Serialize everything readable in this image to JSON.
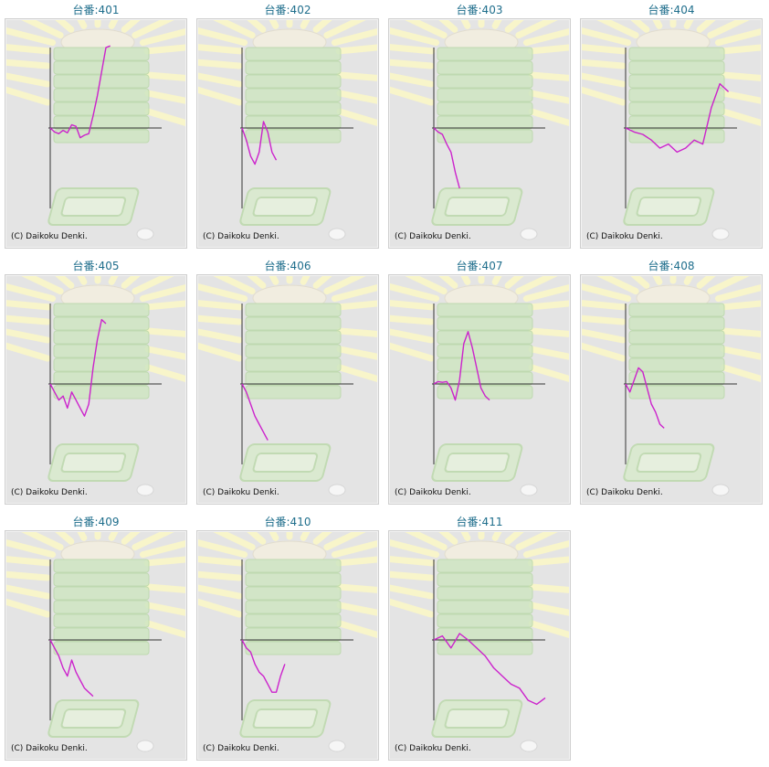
{
  "colors": {
    "title": "#1f6e8c",
    "line": "#cc22cc",
    "axis": "#333333",
    "panel": "#e4e4e4",
    "rays": "#fbf7c8",
    "tower": "#cfe6c2"
  },
  "credit": "(C) Daikoku Denki.",
  "chart_data": [
    {
      "type": "line",
      "title": "台番:401",
      "x": [
        0,
        5,
        10,
        15,
        20,
        25,
        30,
        35,
        40,
        45,
        50,
        55,
        60,
        65,
        70
      ],
      "values": [
        0,
        -5,
        -7,
        -3,
        -6,
        4,
        2,
        -12,
        -9,
        -7,
        15,
        40,
        70,
        100,
        102
      ]
    },
    {
      "type": "line",
      "title": "台番:402",
      "x": [
        0,
        5,
        10,
        15,
        20,
        25,
        30,
        35,
        40
      ],
      "values": [
        0,
        -15,
        -35,
        -45,
        -30,
        8,
        -5,
        -30,
        -40
      ]
    },
    {
      "type": "line",
      "title": "台番:403",
      "x": [
        0,
        5,
        10,
        15,
        20,
        25,
        30
      ],
      "values": [
        0,
        -5,
        -8,
        -20,
        -30,
        -55,
        -75
      ]
    },
    {
      "type": "line",
      "title": "台番:404",
      "x": [
        0,
        10,
        20,
        30,
        40,
        50,
        60,
        70,
        80,
        90,
        100,
        110,
        120
      ],
      "values": [
        0,
        -5,
        -8,
        -15,
        -25,
        -20,
        -30,
        -25,
        -15,
        -20,
        25,
        55,
        45
      ]
    },
    {
      "type": "line",
      "title": "台番:405",
      "x": [
        0,
        5,
        10,
        15,
        20,
        25,
        30,
        35,
        40,
        45,
        50,
        55,
        60,
        65
      ],
      "values": [
        0,
        -10,
        -20,
        -15,
        -30,
        -10,
        -20,
        -30,
        -40,
        -25,
        20,
        55,
        80,
        75
      ]
    },
    {
      "type": "line",
      "title": "台番:406",
      "x": [
        0,
        5,
        10,
        15,
        20,
        25,
        30
      ],
      "values": [
        0,
        -10,
        -25,
        -40,
        -50,
        -60,
        -70
      ]
    },
    {
      "type": "line",
      "title": "台番:407",
      "x": [
        0,
        5,
        10,
        15,
        20,
        25,
        30,
        35,
        40,
        45,
        50,
        55,
        60,
        65
      ],
      "values": [
        0,
        3,
        2,
        3,
        -5,
        -20,
        5,
        50,
        65,
        45,
        20,
        -5,
        -15,
        -20
      ]
    },
    {
      "type": "line",
      "title": "台番:408",
      "x": [
        0,
        5,
        10,
        15,
        20,
        25,
        30,
        35,
        40,
        45
      ],
      "values": [
        0,
        -10,
        5,
        20,
        15,
        -5,
        -25,
        -35,
        -50,
        -55
      ]
    },
    {
      "type": "line",
      "title": "台番:409",
      "x": [
        0,
        5,
        10,
        15,
        20,
        25,
        30,
        35,
        40,
        45,
        50
      ],
      "values": [
        0,
        -10,
        -20,
        -35,
        -45,
        -25,
        -40,
        -50,
        -60,
        -65,
        -70
      ]
    },
    {
      "type": "line",
      "title": "台番:410",
      "x": [
        0,
        5,
        10,
        15,
        20,
        25,
        30,
        35,
        40,
        45,
        50
      ],
      "values": [
        0,
        -10,
        -15,
        -30,
        -40,
        -45,
        -55,
        -65,
        -65,
        -45,
        -30
      ]
    },
    {
      "type": "line",
      "title": "台番:411",
      "x": [
        0,
        10,
        20,
        30,
        40,
        50,
        60,
        70,
        80,
        90,
        100,
        110,
        120,
        130
      ],
      "values": [
        0,
        5,
        -10,
        8,
        0,
        -10,
        -20,
        -35,
        -45,
        -55,
        -60,
        -75,
        -80,
        -72
      ]
    }
  ]
}
